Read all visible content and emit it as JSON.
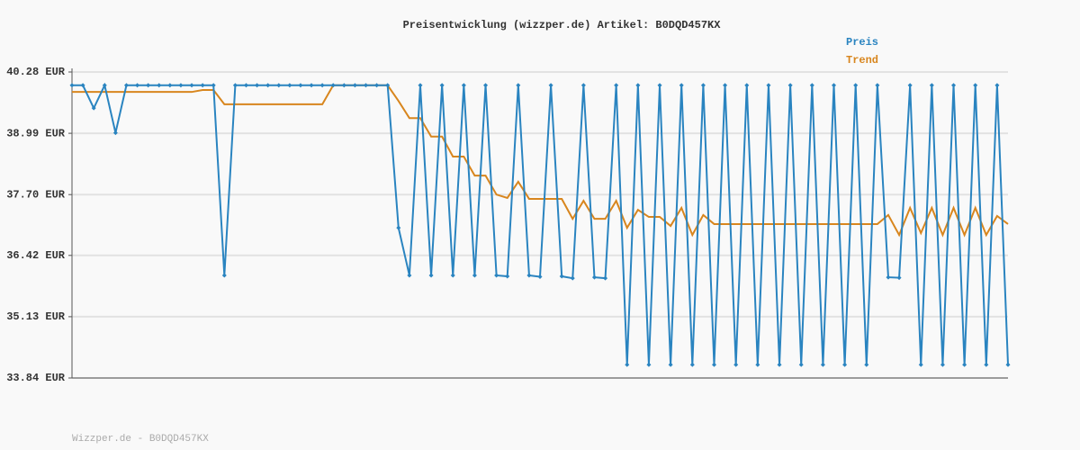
{
  "chart_data": {
    "type": "line",
    "title": "Preisentwicklung (wizzper.de) Artikel: B0DQD457KX",
    "footer": "Wizzper.de - B0DQD457KX",
    "ylim": [
      33.84,
      40.28
    ],
    "yticks": [
      {
        "value": 33.84,
        "label": "33.84 EUR"
      },
      {
        "value": 35.13,
        "label": "35.13 EUR"
      },
      {
        "value": 36.42,
        "label": "36.42 EUR"
      },
      {
        "value": 37.7,
        "label": "37.70 EUR"
      },
      {
        "value": 38.99,
        "label": "38.99 EUR"
      },
      {
        "value": 40.28,
        "label": "40.28 EUR"
      }
    ],
    "grid": true,
    "legend": "top-right",
    "series": [
      {
        "name": "Preis",
        "color": "#2a84c0",
        "markers": true,
        "values": [
          40,
          40,
          39.52,
          40,
          39,
          40,
          40,
          40,
          40,
          40,
          40,
          40,
          40,
          40,
          36,
          40,
          40,
          40,
          40,
          40,
          40,
          40,
          40,
          40,
          40,
          40,
          40,
          40,
          40,
          40,
          37,
          36,
          40,
          36,
          40,
          36,
          40,
          36,
          40,
          36,
          35.98,
          40,
          36,
          35.97,
          40,
          35.98,
          35.94,
          40,
          35.96,
          35.94,
          40,
          34.12,
          40,
          34.12,
          40,
          34.12,
          40,
          34.12,
          40,
          34.12,
          40,
          34.12,
          40,
          34.12,
          40,
          34.12,
          40,
          34.12,
          40,
          34.12,
          40,
          34.12,
          40,
          34.12,
          40,
          35.96,
          35.95,
          40,
          34.12,
          40,
          34.12,
          40,
          34.12,
          40,
          34.12,
          40,
          34.12
        ]
      },
      {
        "name": "Trend",
        "color": "#d8861e",
        "markers": false,
        "values": [
          39.86,
          39.86,
          39.86,
          39.86,
          39.86,
          39.86,
          39.86,
          39.86,
          39.86,
          39.86,
          39.86,
          39.86,
          39.9,
          39.9,
          39.6,
          39.6,
          39.6,
          39.6,
          39.6,
          39.6,
          39.6,
          39.6,
          39.6,
          39.6,
          40,
          40,
          40,
          40,
          40,
          40,
          39.67,
          39.31,
          39.31,
          38.92,
          38.92,
          38.5,
          38.5,
          38.1,
          38.1,
          37.7,
          37.63,
          37.97,
          37.61,
          37.61,
          37.61,
          37.61,
          37.19,
          37.57,
          37.19,
          37.19,
          37.57,
          37,
          37.38,
          37.23,
          37.23,
          37.04,
          37.42,
          36.85,
          37.27,
          37.08,
          37.08,
          37.08,
          37.08,
          37.08,
          37.08,
          37.08,
          37.08,
          37.08,
          37.08,
          37.08,
          37.08,
          37.08,
          37.08,
          37.08,
          37.08,
          37.27,
          36.85,
          37.42,
          36.89,
          37.42,
          36.85,
          37.42,
          36.85,
          37.42,
          36.85,
          37.25,
          37.08
        ]
      }
    ]
  }
}
